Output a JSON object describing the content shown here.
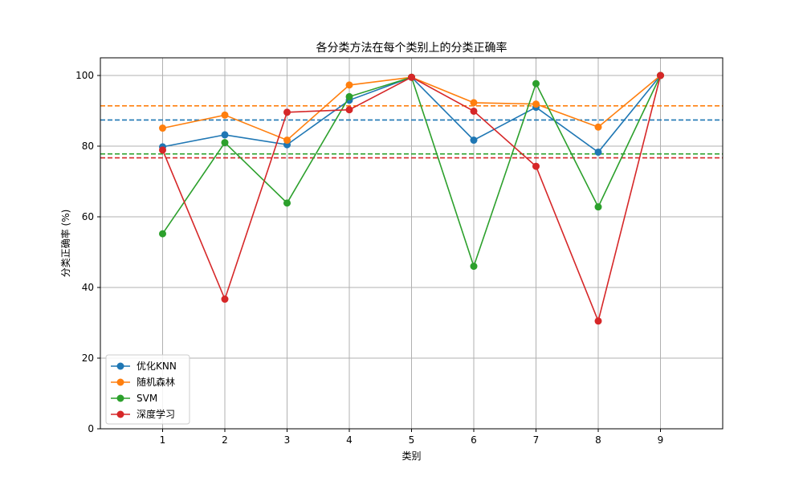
{
  "chart_data": {
    "type": "line",
    "title": "各分类方法在每个类别上的分类正确率",
    "xlabel": "类别",
    "ylabel": "分类正确率 (%)",
    "x": [
      1,
      2,
      3,
      4,
      5,
      6,
      7,
      8,
      9
    ],
    "xlim": [
      0,
      10
    ],
    "ylim": [
      0,
      105
    ],
    "xticks": [
      1,
      2,
      3,
      4,
      5,
      6,
      7,
      8,
      9
    ],
    "yticks": [
      0,
      20,
      40,
      60,
      80,
      100
    ],
    "grid": true,
    "legend_position": "lower-left",
    "series": [
      {
        "name": "优化KNN",
        "color": "#1f77b4",
        "values": [
          79.8,
          83.2,
          80.4,
          93.0,
          99.5,
          81.7,
          91.0,
          78.3,
          100.0
        ],
        "mean": 87.4
      },
      {
        "name": "随机森林",
        "color": "#ff7f0e",
        "values": [
          85.1,
          88.8,
          81.7,
          97.3,
          99.5,
          92.3,
          91.9,
          85.4,
          100.0
        ],
        "mean": 91.4
      },
      {
        "name": "SVM",
        "color": "#2ca02c",
        "values": [
          55.2,
          81.0,
          63.9,
          94.0,
          99.5,
          46.0,
          97.7,
          62.8,
          100.0
        ],
        "mean": 77.8
      },
      {
        "name": "深度学习",
        "color": "#d62728",
        "values": [
          78.9,
          36.7,
          89.6,
          90.3,
          99.5,
          89.9,
          74.3,
          30.5,
          100.0
        ],
        "mean": 76.7
      }
    ]
  }
}
